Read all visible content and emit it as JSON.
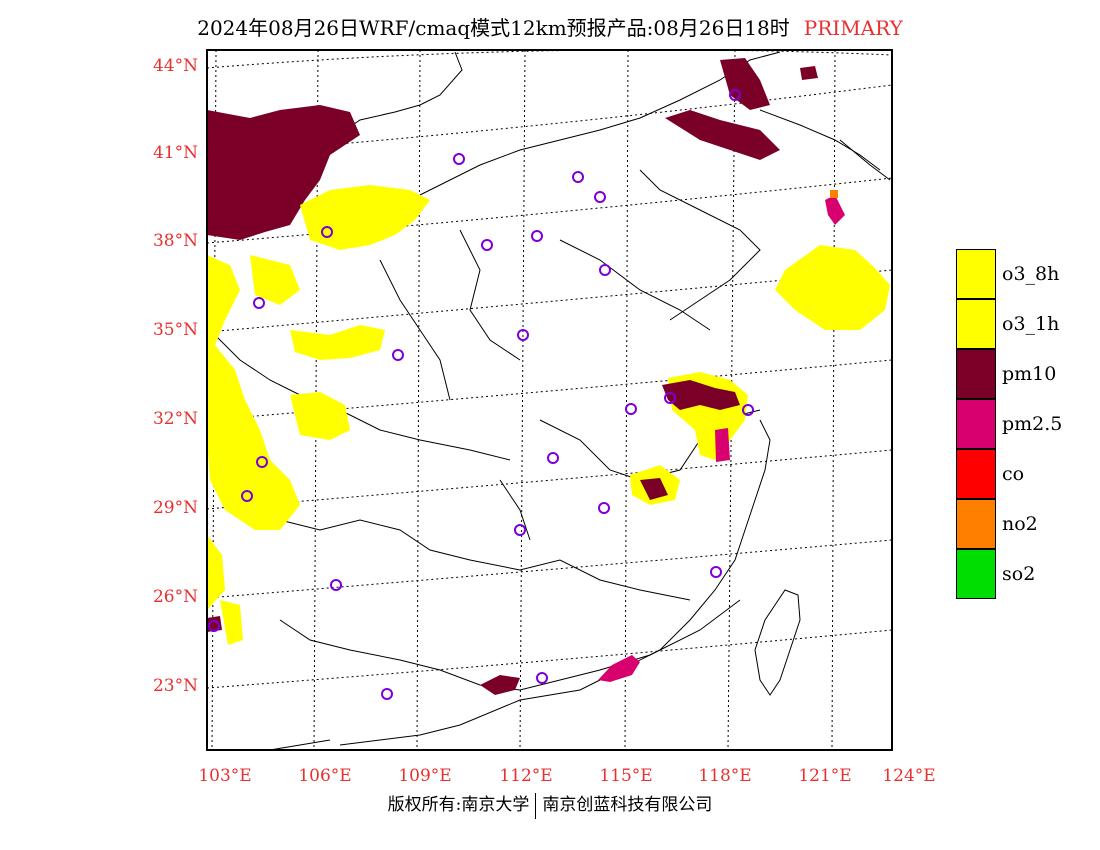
{
  "title": {
    "main": "2024年08月26日WRF/cmaq模式12km预报产品:08月26日18时",
    "tag": "PRIMARY"
  },
  "lat_labels": [
    "44°N",
    "41°N",
    "38°N",
    "35°N",
    "32°N",
    "29°N",
    "26°N",
    "23°N"
  ],
  "lon_labels": [
    "103°E",
    "106°E",
    "109°E",
    "112°E",
    "115°E",
    "118°E",
    "121°E",
    "124°E"
  ],
  "legend": [
    {
      "label": "o3_8h",
      "color": "#ffff00"
    },
    {
      "label": "o3_1h",
      "color": "#ffff00"
    },
    {
      "label": "pm10",
      "color": "#7a0028"
    },
    {
      "label": "pm2.5",
      "color": "#d8006f"
    },
    {
      "label": "co",
      "color": "#ff0000"
    },
    {
      "label": "no2",
      "color": "#ff7f00"
    },
    {
      "label": "so2",
      "color": "#00dd00"
    }
  ],
  "footer": {
    "left": "版权所有:南京大学",
    "right": "南京创蓝科技有限公司"
  }
}
